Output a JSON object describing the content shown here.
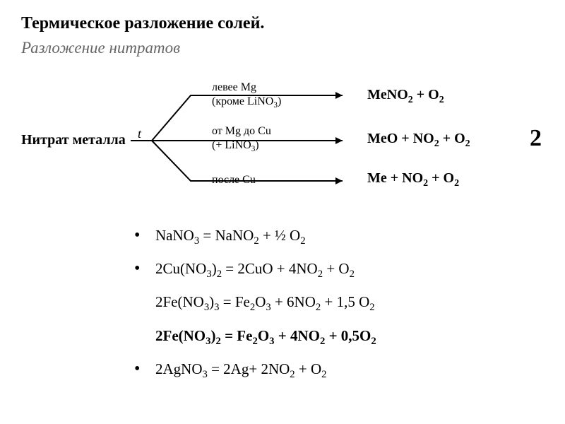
{
  "title": "Термическое разложение солей.",
  "subtitle": "Разложение нитратов",
  "diagram": {
    "nitrate_label": "Нитрат металла",
    "t_label": "t",
    "branch1_line1": "левее Mg",
    "branch1_line2": "(кроме LiNO",
    "branch1_line2_sub": "3",
    "branch1_line2_close": ")",
    "branch2_line1": "от Mg до Cu",
    "branch2_line2": "(+ LiNO",
    "branch2_line2_sub": "3",
    "branch2_line2_close": ")",
    "branch3_line1": "после Cu",
    "product1_pre": "MeNO",
    "product1_sub1": "2",
    "product1_mid": " + O",
    "product1_sub2": "2",
    "product2_pre": "MeO + NO",
    "product2_sub1": "2",
    "product2_mid": " + O",
    "product2_sub2": "2",
    "product3_pre": "Me + NO",
    "product3_sub1": "2",
    "product3_mid": " + O",
    "product3_sub2": "2",
    "big2": "2"
  },
  "equations": [
    {
      "bullet": true,
      "bold": false,
      "html": "NaNO<sub>3</sub> = NaNO<sub>2</sub> + ½ O<sub>2</sub>"
    },
    {
      "bullet": true,
      "bold": false,
      "html": "2Cu(NO<sub>3</sub>)<sub>2</sub> = 2CuO + 4NO<sub>2</sub> + O<sub>2</sub>"
    },
    {
      "bullet": false,
      "bold": false,
      "html": "2Fe(NO<sub>3</sub>)<sub>3</sub> =  Fe<sub>2</sub>O<sub>3</sub> + 6NO<sub>2</sub> + 1,5 O<sub>2</sub>"
    },
    {
      "bullet": false,
      "bold": true,
      "html": "2Fe(NO<sub>3</sub>)<sub>2</sub> = Fe<sub>2</sub>O<sub>3</sub> + 4NO<sub>2</sub> + 0,5O<sub>2</sub>"
    },
    {
      "bullet": true,
      "bold": false,
      "html": "2AgNO<sub>3</sub> = 2Ag+ 2NO<sub>2</sub> + O<sub>2</sub>"
    }
  ],
  "colors": {
    "text": "#000000",
    "subtitle": "#666666",
    "background": "#ffffff"
  }
}
